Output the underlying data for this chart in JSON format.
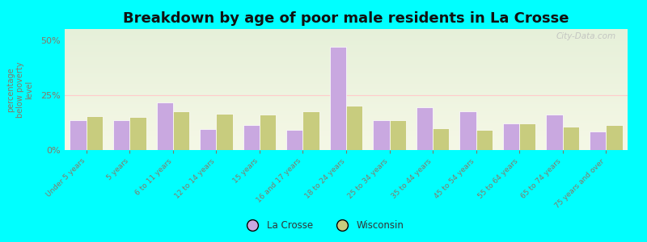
{
  "title": "Breakdown by age of poor male residents in La Crosse",
  "categories": [
    "Under 5 years",
    "5 years",
    "6 to 11 years",
    "12 to 14 years",
    "15 years",
    "16 and 17 years",
    "18 to 24 years",
    "25 to 34 years",
    "35 to 44 years",
    "45 to 54 years",
    "55 to 64 years",
    "65 to 74 years",
    "75 years and over"
  ],
  "la_crosse": [
    13.5,
    13.5,
    21.5,
    9.5,
    11.5,
    9.0,
    47.0,
    13.5,
    19.5,
    17.5,
    12.0,
    16.0,
    8.5
  ],
  "wisconsin": [
    15.5,
    15.0,
    17.5,
    16.5,
    16.0,
    17.5,
    20.0,
    13.5,
    10.0,
    9.0,
    12.0,
    10.5,
    11.5
  ],
  "lacrosse_color": "#c9a8e0",
  "wisconsin_color": "#c8cc7e",
  "background_color": "#00ffff",
  "ylabel": "percentage\nbelow poverty\nlevel",
  "ylim": [
    0,
    55
  ],
  "yticks": [
    0,
    25,
    50
  ],
  "title_fontsize": 13,
  "bar_width": 0.38,
  "watermark": "City-Data.com"
}
